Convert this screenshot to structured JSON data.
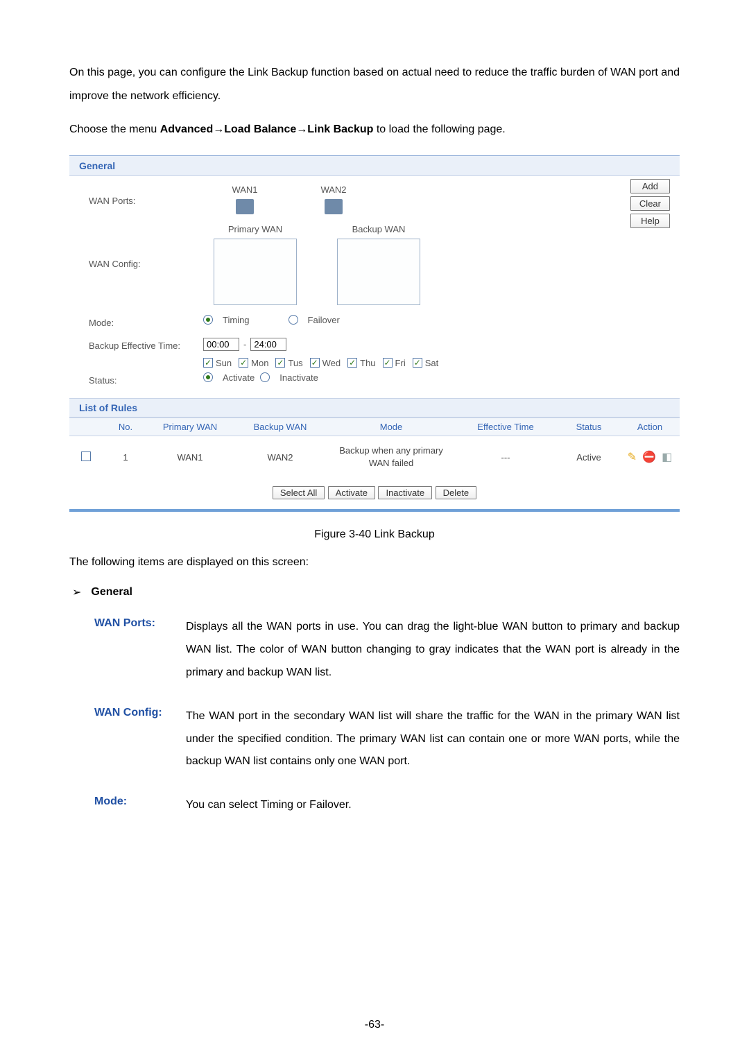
{
  "intro_paragraph": "On this page, you can configure the Link Backup function based on actual need to reduce the traffic burden of WAN port and improve the network efficiency.",
  "menu_prefix": "Choose the menu ",
  "menu_path": "Advanced→Load Balance→Link Backup",
  "menu_suffix": " to load the following page.",
  "general": {
    "header": "General",
    "wan_ports_label": "WAN Ports:",
    "wan1": "WAN1",
    "wan2": "WAN2",
    "wan_config_label": "WAN Config:",
    "primary_wan": "Primary WAN",
    "backup_wan": "Backup WAN",
    "mode_label": "Mode:",
    "mode_timing": "Timing",
    "mode_failover": "Failover",
    "backup_time_label": "Backup Effective Time:",
    "time_from": "00:00",
    "time_sep": "-",
    "time_to": "24:00",
    "days": [
      "Sun",
      "Mon",
      "Tus",
      "Wed",
      "Thu",
      "Fri",
      "Sat"
    ],
    "status_label": "Status:",
    "status_activate": "Activate",
    "status_inactivate": "Inactivate",
    "btn_add": "Add",
    "btn_clear": "Clear",
    "btn_help": "Help"
  },
  "rules": {
    "header": "List of Rules",
    "cols": {
      "no": "No.",
      "primary": "Primary WAN",
      "backup": "Backup WAN",
      "mode": "Mode",
      "time": "Effective Time",
      "status": "Status",
      "action": "Action"
    },
    "row1": {
      "no": "1",
      "primary": "WAN1",
      "backup": "WAN2",
      "mode": "Backup when any primary WAN failed",
      "time": "---",
      "status": "Active"
    },
    "btn_select_all": "Select All",
    "btn_activate": "Activate",
    "btn_inactivate": "Inactivate",
    "btn_delete": "Delete"
  },
  "figure_caption": "Figure 3-40 Link Backup",
  "desc_intro": "The following items are displayed on this screen:",
  "bullet_label": "General",
  "defs": {
    "wan_ports": {
      "term": "WAN Ports:",
      "desc": "Displays all the WAN ports in use. You can drag the light-blue WAN button to primary and backup WAN list. The color of WAN button changing to gray indicates that the WAN port is already in the primary and backup WAN list."
    },
    "wan_config": {
      "term": "WAN Config:",
      "desc": "The WAN port in the secondary WAN list will share the traffic for the WAN in the primary WAN list under the specified condition. The primary WAN list can contain one or more WAN ports, while the backup WAN list contains only one WAN port."
    },
    "mode": {
      "term": "Mode:",
      "desc": "You can select Timing or Failover."
    }
  },
  "page_number": "-63-"
}
